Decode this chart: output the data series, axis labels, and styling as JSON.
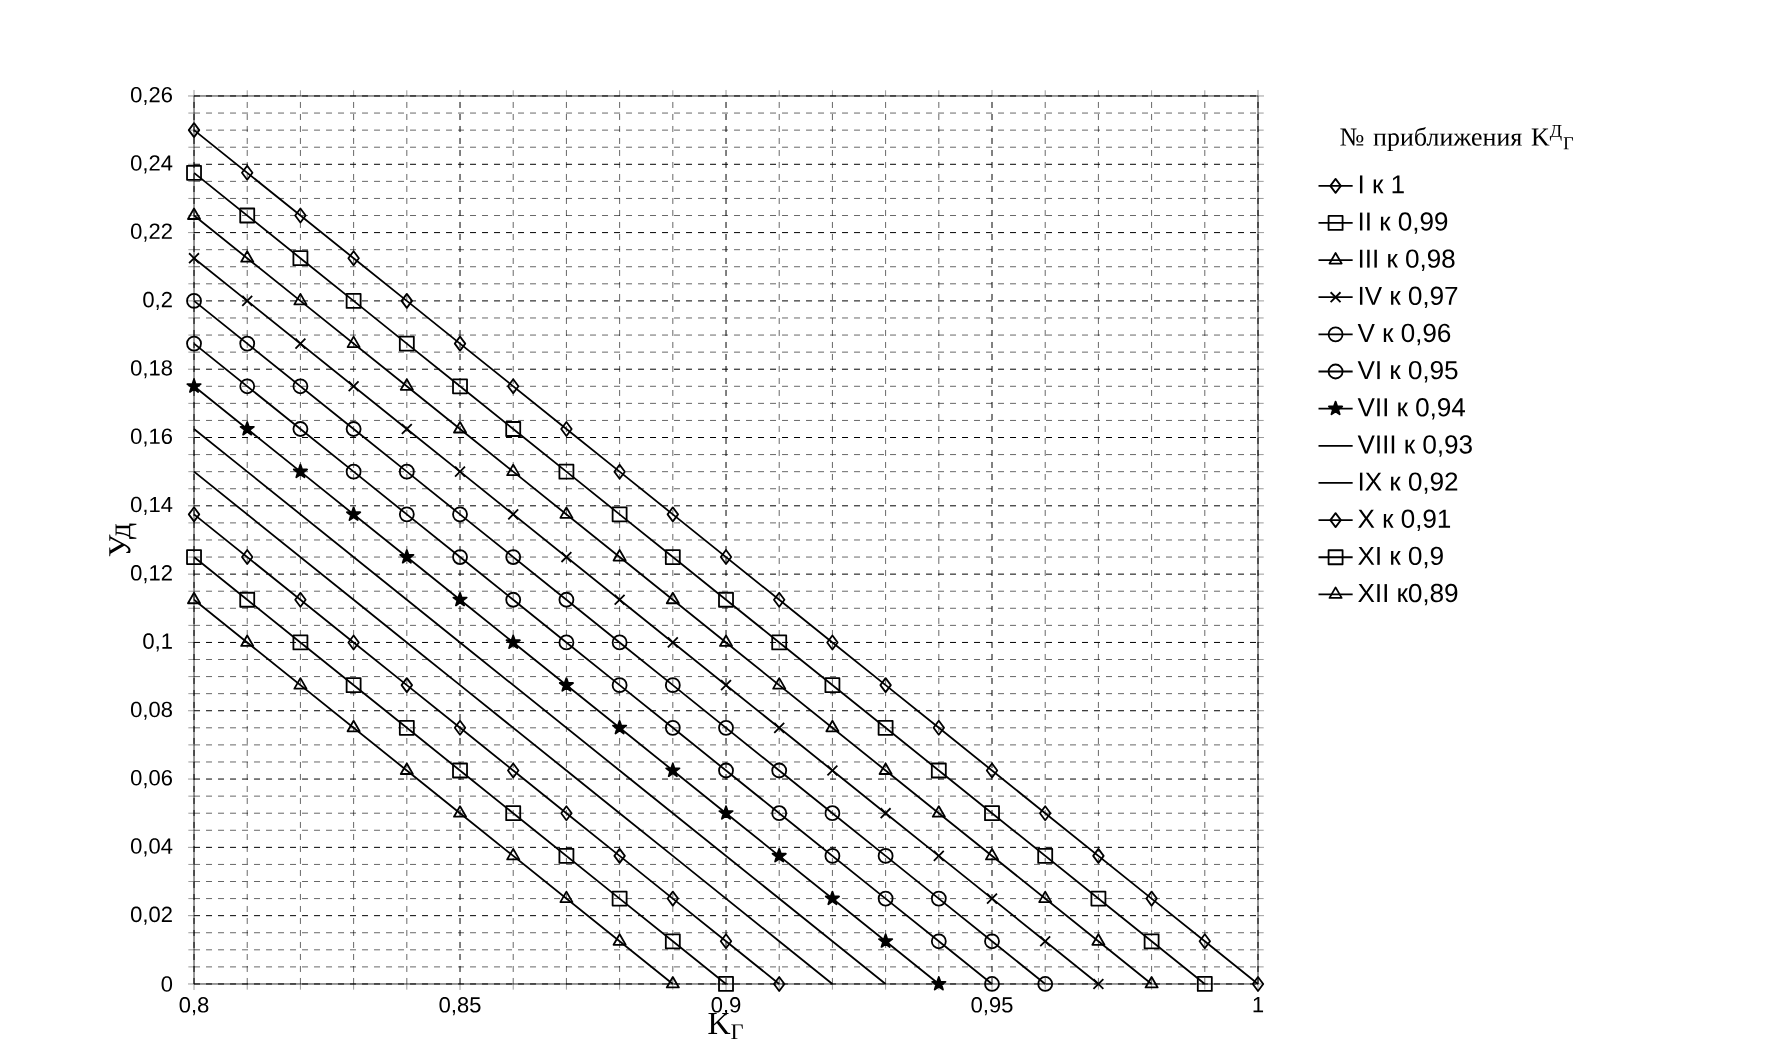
{
  "chart_data": {
    "type": "line",
    "xlabel": "K$_{Г}$",
    "ylabel": "Уд",
    "legend_title": "№ приближения K$^{Д}$$_{Г}$",
    "xlim": [
      0.8,
      1.0
    ],
    "ylim": [
      0,
      0.26
    ],
    "xticks": [
      {
        "value": 0.8,
        "label": "0,8"
      },
      {
        "value": 0.85,
        "label": "0,85"
      },
      {
        "value": 0.9,
        "label": "0,9"
      },
      {
        "value": 0.95,
        "label": "0,95"
      },
      {
        "value": 1,
        "label": "1"
      }
    ],
    "yticks": [
      0,
      {
        "value": 0.02,
        "label": "0,02"
      },
      {
        "value": 0.04,
        "label": "0,04"
      },
      {
        "value": 0.06,
        "label": "0,06"
      },
      {
        "value": 0.08,
        "label": "0,08"
      },
      {
        "value": 0.1,
        "label": "0,1"
      },
      {
        "value": 0.12,
        "label": "0,12"
      },
      {
        "value": 0.14,
        "label": "0,14"
      },
      {
        "value": 0.16,
        "label": "0,16"
      },
      {
        "value": 0.18,
        "label": "0,18"
      },
      {
        "value": 0.2,
        "label": "0,2"
      },
      {
        "value": 0.22,
        "label": "0,22"
      },
      {
        "value": 0.24,
        "label": "0,24"
      },
      {
        "value": 0.26,
        "label": "0,26"
      }
    ],
    "grid": true,
    "legend": "right",
    "line_style": "solid",
    "series": [
      {
        "name": "I к 1",
        "color": "#000000",
        "marker": "diamond",
        "x": [
          0.8,
          0.81,
          0.82,
          0.83,
          0.84,
          0.85,
          0.86,
          0.87,
          0.88,
          0.89,
          0.9,
          0.91,
          0.92,
          0.93,
          0.94,
          0.95,
          0.96,
          0.97,
          0.98,
          0.99,
          1.0
        ],
        "values": [
          0.25,
          0.2375,
          0.225,
          0.2125,
          0.2,
          0.1875,
          0.175,
          0.1625,
          0.15,
          0.1375,
          0.125,
          0.1125,
          0.1,
          0.0875,
          0.075,
          0.0625,
          0.05,
          0.0375,
          0.025,
          0.0125,
          0
        ]
      },
      {
        "name": "II к 0,99",
        "color": "#000000",
        "marker": "square",
        "x": [
          0.8,
          0.81,
          0.82,
          0.83,
          0.84,
          0.85,
          0.86,
          0.87,
          0.88,
          0.89,
          0.9,
          0.91,
          0.92,
          0.93,
          0.94,
          0.95,
          0.96,
          0.97,
          0.98,
          0.99
        ],
        "values": [
          0.2375,
          0.225,
          0.2125,
          0.2,
          0.1875,
          0.175,
          0.1625,
          0.15,
          0.1375,
          0.125,
          0.1125,
          0.1,
          0.0875,
          0.075,
          0.0625,
          0.05,
          0.0375,
          0.025,
          0.0125,
          0
        ]
      },
      {
        "name": "III к 0,98",
        "color": "#000000",
        "marker": "triangle",
        "x": [
          0.8,
          0.81,
          0.82,
          0.83,
          0.84,
          0.85,
          0.86,
          0.87,
          0.88,
          0.89,
          0.9,
          0.91,
          0.92,
          0.93,
          0.94,
          0.95,
          0.96,
          0.97,
          0.98
        ],
        "values": [
          0.225,
          0.2125,
          0.2,
          0.1875,
          0.175,
          0.1625,
          0.15,
          0.1375,
          0.125,
          0.1125,
          0.1,
          0.0875,
          0.075,
          0.0625,
          0.05,
          0.0375,
          0.025,
          0.0125,
          0
        ]
      },
      {
        "name": "IV к 0,97",
        "color": "#000000",
        "marker": "cross",
        "x": [
          0.8,
          0.81,
          0.82,
          0.83,
          0.84,
          0.85,
          0.86,
          0.87,
          0.88,
          0.89,
          0.9,
          0.91,
          0.92,
          0.93,
          0.94,
          0.95,
          0.96,
          0.97
        ],
        "values": [
          0.2125,
          0.2,
          0.1875,
          0.175,
          0.1625,
          0.15,
          0.1375,
          0.125,
          0.1125,
          0.1,
          0.0875,
          0.075,
          0.0625,
          0.05,
          0.0375,
          0.025,
          0.0125,
          0
        ]
      },
      {
        "name": "V к 0,96",
        "color": "#000000",
        "marker": "circle",
        "x": [
          0.8,
          0.81,
          0.82,
          0.83,
          0.84,
          0.85,
          0.86,
          0.87,
          0.88,
          0.89,
          0.9,
          0.91,
          0.92,
          0.93,
          0.94,
          0.95,
          0.96
        ],
        "values": [
          0.2,
          0.1875,
          0.175,
          0.1625,
          0.15,
          0.1375,
          0.125,
          0.1125,
          0.1,
          0.0875,
          0.075,
          0.0625,
          0.05,
          0.0375,
          0.025,
          0.0125,
          0
        ]
      },
      {
        "name": "VI к 0,95",
        "color": "#000000",
        "marker": "circle",
        "x": [
          0.8,
          0.81,
          0.82,
          0.83,
          0.84,
          0.85,
          0.86,
          0.87,
          0.88,
          0.89,
          0.9,
          0.91,
          0.92,
          0.93,
          0.94,
          0.95
        ],
        "values": [
          0.1875,
          0.175,
          0.1625,
          0.15,
          0.1375,
          0.125,
          0.1125,
          0.1,
          0.0875,
          0.075,
          0.0625,
          0.05,
          0.0375,
          0.025,
          0.0125,
          0
        ]
      },
      {
        "name": "VII к 0,94",
        "color": "#000000",
        "marker": "star",
        "x": [
          0.8,
          0.81,
          0.82,
          0.83,
          0.84,
          0.85,
          0.86,
          0.87,
          0.88,
          0.89,
          0.9,
          0.91,
          0.92,
          0.93,
          0.94
        ],
        "values": [
          0.175,
          0.1625,
          0.15,
          0.1375,
          0.125,
          0.1125,
          0.1,
          0.0875,
          0.075,
          0.0625,
          0.05,
          0.0375,
          0.025,
          0.0125,
          0
        ]
      },
      {
        "name": "VIII к 0,93",
        "color": "#000000",
        "marker": "none",
        "x": [
          0.8,
          0.81,
          0.82,
          0.83,
          0.84,
          0.85,
          0.86,
          0.87,
          0.88,
          0.89,
          0.9,
          0.91,
          0.92,
          0.93
        ],
        "values": [
          0.1625,
          0.15,
          0.1375,
          0.125,
          0.1125,
          0.1,
          0.0875,
          0.075,
          0.0625,
          0.05,
          0.0375,
          0.025,
          0.0125,
          0
        ]
      },
      {
        "name": "IX к 0,92",
        "color": "#000000",
        "marker": "none",
        "x": [
          0.8,
          0.81,
          0.82,
          0.83,
          0.84,
          0.85,
          0.86,
          0.87,
          0.88,
          0.89,
          0.9,
          0.91,
          0.92
        ],
        "values": [
          0.15,
          0.1375,
          0.125,
          0.1125,
          0.1,
          0.0875,
          0.075,
          0.0625,
          0.05,
          0.0375,
          0.025,
          0.0125,
          0
        ]
      },
      {
        "name": "X к 0,91",
        "color": "#000000",
        "marker": "diamond",
        "x": [
          0.8,
          0.81,
          0.82,
          0.83,
          0.84,
          0.85,
          0.86,
          0.87,
          0.88,
          0.89,
          0.9,
          0.91
        ],
        "values": [
          0.1375,
          0.125,
          0.1125,
          0.1,
          0.0875,
          0.075,
          0.0625,
          0.05,
          0.0375,
          0.025,
          0.0125,
          0
        ]
      },
      {
        "name": "XI к 0,9",
        "color": "#000000",
        "marker": "square",
        "x": [
          0.8,
          0.81,
          0.82,
          0.83,
          0.84,
          0.85,
          0.86,
          0.87,
          0.88,
          0.89,
          0.9
        ],
        "values": [
          0.125,
          0.1125,
          0.1,
          0.0875,
          0.075,
          0.0625,
          0.05,
          0.0375,
          0.025,
          0.0125,
          0
        ]
      },
      {
        "name": "XII к0,89",
        "color": "#000000",
        "marker": "triangle",
        "x": [
          0.8,
          0.81,
          0.82,
          0.83,
          0.84,
          0.85,
          0.86,
          0.87,
          0.88,
          0.89
        ],
        "values": [
          0.1125,
          0.1,
          0.0875,
          0.075,
          0.0625,
          0.05,
          0.0375,
          0.025,
          0.0125,
          0
        ]
      }
    ]
  }
}
